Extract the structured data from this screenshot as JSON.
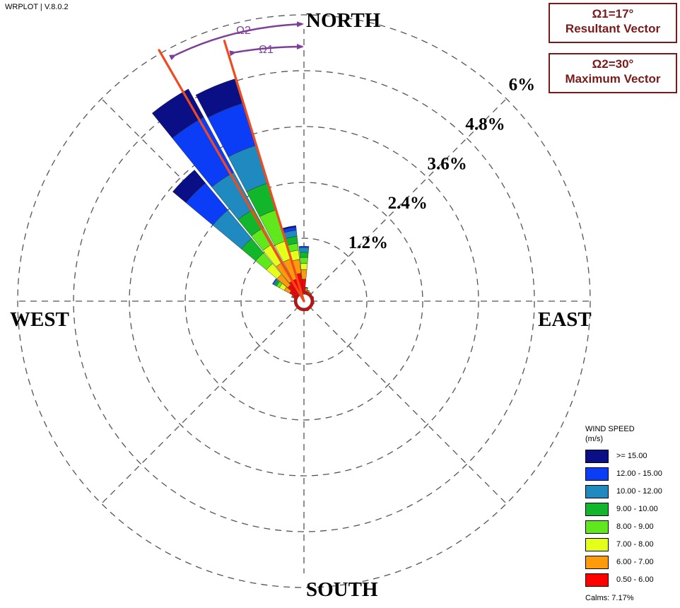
{
  "app_label": "WRPLOT | V.8.0.2",
  "annotations": {
    "box1_line1": "Ω1=17°",
    "box1_line2": "Resultant Vector",
    "box2_line1": "Ω2=30°",
    "box2_line2": "Maximum Vector",
    "omega1": "Ω1",
    "omega2": "Ω2",
    "resultant_vector_direction_deg": 343,
    "maximum_vector_direction_deg": 330,
    "line_color": "#f04a1e",
    "arrow_color": "#7e3f98"
  },
  "chart_data": {
    "type": "wind-rose",
    "compass": {
      "north": "NORTH",
      "south": "SOUTH",
      "east": "EAST",
      "west": "WEST"
    },
    "radial_axis": {
      "unit": "%",
      "max": 6,
      "rings": [
        1.2,
        2.4,
        3.6,
        4.8,
        6
      ],
      "ring_labels": [
        "1.2%",
        "2.4%",
        "3.6%",
        "4.8%",
        "6%"
      ],
      "label_direction": "NE",
      "grid": true
    },
    "legend": {
      "title_line1": "WIND SPEED",
      "title_line2": "(m/s)",
      "position": "bottom-right",
      "calms": "Calms: 7.17%"
    },
    "speed_classes": [
      {
        "label": "0.50 - 6.00",
        "color": "#ff0000"
      },
      {
        "label": "6.00 - 7.00",
        "color": "#ff9a0a"
      },
      {
        "label": "7.00 - 8.00",
        "color": "#e4ff1a"
      },
      {
        "label": "8.00 - 9.00",
        "color": "#5fe91c"
      },
      {
        "label": "9.00 - 10.00",
        "color": "#12b62a"
      },
      {
        "label": "10.00 - 12.00",
        "color": "#1f8abf"
      },
      {
        "label": "12.00 - 15.00",
        "color": "#0c3df6"
      },
      {
        "label": ">= 15.00",
        "color": "#0a0f86"
      }
    ],
    "sectors": [
      {
        "direction_deg": 0,
        "cumulative_pct": [
          0.32,
          0.53,
          0.66,
          0.79,
          0.9,
          1.0,
          1.03,
          1.03
        ]
      },
      {
        "direction_deg": 348.75,
        "cumulative_pct": [
          0.45,
          0.75,
          0.95,
          1.1,
          1.25,
          1.38,
          1.45,
          1.48
        ]
      },
      {
        "direction_deg": 337.5,
        "cumulative_pct": [
          0.35,
          0.8,
          1.2,
          1.9,
          2.5,
          3.35,
          4.3,
          4.85
        ]
      },
      {
        "direction_deg": 326.25,
        "cumulative_pct": [
          0.35,
          0.8,
          1.25,
          1.65,
          2.1,
          3.0,
          4.35,
          5.04
        ]
      },
      {
        "direction_deg": 315,
        "cumulative_pct": [
          0.3,
          0.6,
          0.9,
          1.2,
          1.6,
          2.4,
          3.15,
          3.52
        ]
      },
      {
        "direction_deg": 303.75,
        "cumulative_pct": [
          0.2,
          0.33,
          0.45,
          0.52,
          0.56,
          0.6,
          0.62,
          0.62
        ]
      },
      {
        "direction_deg": 11.25,
        "cumulative_pct": [
          0.07,
          0.11,
          0.13,
          0.14,
          0.15,
          0.15,
          0.15,
          0.15
        ]
      },
      {
        "direction_deg": 22.5,
        "cumulative_pct": [
          0.06,
          0.09,
          0.1,
          0.1,
          0.1,
          0.1,
          0.1,
          0.1
        ]
      },
      {
        "direction_deg": 33.75,
        "cumulative_pct": [
          0.05,
          0.07,
          0.08,
          0.08,
          0.08,
          0.08,
          0.08,
          0.08
        ]
      },
      {
        "direction_deg": 45,
        "cumulative_pct": [
          0.06,
          0.07,
          0.07,
          0.07,
          0.07,
          0.07,
          0.07,
          0.07
        ]
      },
      {
        "direction_deg": 56.25,
        "cumulative_pct": [
          0.06,
          0.06,
          0.06,
          0.06,
          0.06,
          0.06,
          0.06,
          0.06
        ]
      },
      {
        "direction_deg": 67.5,
        "cumulative_pct": [
          0.07,
          0.07,
          0.07,
          0.07,
          0.07,
          0.07,
          0.07,
          0.07
        ]
      },
      {
        "direction_deg": 78.75,
        "cumulative_pct": [
          0.06,
          0.06,
          0.06,
          0.06,
          0.06,
          0.06,
          0.06,
          0.06
        ]
      },
      {
        "direction_deg": 90,
        "cumulative_pct": [
          0.06,
          0.06,
          0.06,
          0.06,
          0.06,
          0.06,
          0.06,
          0.06
        ]
      },
      {
        "direction_deg": 101.25,
        "cumulative_pct": [
          0.07,
          0.07,
          0.07,
          0.07,
          0.07,
          0.07,
          0.07,
          0.07
        ]
      },
      {
        "direction_deg": 112.5,
        "cumulative_pct": [
          0.06,
          0.06,
          0.06,
          0.06,
          0.06,
          0.06,
          0.06,
          0.06
        ]
      },
      {
        "direction_deg": 123.75,
        "cumulative_pct": [
          0.06,
          0.06,
          0.06,
          0.06,
          0.06,
          0.06,
          0.06,
          0.06
        ]
      },
      {
        "direction_deg": 135,
        "cumulative_pct": [
          0.06,
          0.06,
          0.06,
          0.06,
          0.06,
          0.06,
          0.06,
          0.06
        ]
      },
      {
        "direction_deg": 146.25,
        "cumulative_pct": [
          0.06,
          0.06,
          0.06,
          0.06,
          0.06,
          0.06,
          0.06,
          0.06
        ]
      },
      {
        "direction_deg": 157.5,
        "cumulative_pct": [
          0.07,
          0.07,
          0.07,
          0.07,
          0.07,
          0.07,
          0.07,
          0.07
        ]
      },
      {
        "direction_deg": 168.75,
        "cumulative_pct": [
          0.06,
          0.06,
          0.06,
          0.06,
          0.06,
          0.06,
          0.06,
          0.06
        ]
      },
      {
        "direction_deg": 180,
        "cumulative_pct": [
          0.06,
          0.06,
          0.06,
          0.06,
          0.06,
          0.06,
          0.06,
          0.06
        ]
      },
      {
        "direction_deg": 191.25,
        "cumulative_pct": [
          0.06,
          0.06,
          0.06,
          0.06,
          0.06,
          0.06,
          0.06,
          0.06
        ]
      },
      {
        "direction_deg": 202.5,
        "cumulative_pct": [
          0.06,
          0.06,
          0.06,
          0.06,
          0.06,
          0.06,
          0.06,
          0.06
        ]
      },
      {
        "direction_deg": 213.75,
        "cumulative_pct": [
          0.06,
          0.06,
          0.06,
          0.06,
          0.06,
          0.06,
          0.06,
          0.06
        ]
      },
      {
        "direction_deg": 225,
        "cumulative_pct": [
          0.06,
          0.06,
          0.06,
          0.06,
          0.06,
          0.06,
          0.06,
          0.06
        ]
      },
      {
        "direction_deg": 236.25,
        "cumulative_pct": [
          0.06,
          0.06,
          0.06,
          0.06,
          0.06,
          0.06,
          0.06,
          0.06
        ]
      },
      {
        "direction_deg": 247.5,
        "cumulative_pct": [
          0.06,
          0.06,
          0.06,
          0.06,
          0.06,
          0.06,
          0.06,
          0.06
        ]
      },
      {
        "direction_deg": 258.75,
        "cumulative_pct": [
          0.06,
          0.06,
          0.06,
          0.06,
          0.06,
          0.06,
          0.06,
          0.06
        ]
      },
      {
        "direction_deg": 270,
        "cumulative_pct": [
          0.06,
          0.06,
          0.06,
          0.06,
          0.06,
          0.06,
          0.06,
          0.06
        ]
      },
      {
        "direction_deg": 281.25,
        "cumulative_pct": [
          0.06,
          0.06,
          0.06,
          0.06,
          0.06,
          0.06,
          0.06,
          0.06
        ]
      },
      {
        "direction_deg": 292.5,
        "cumulative_pct": [
          0.1,
          0.12,
          0.13,
          0.13,
          0.13,
          0.13,
          0.13,
          0.13
        ]
      }
    ]
  }
}
